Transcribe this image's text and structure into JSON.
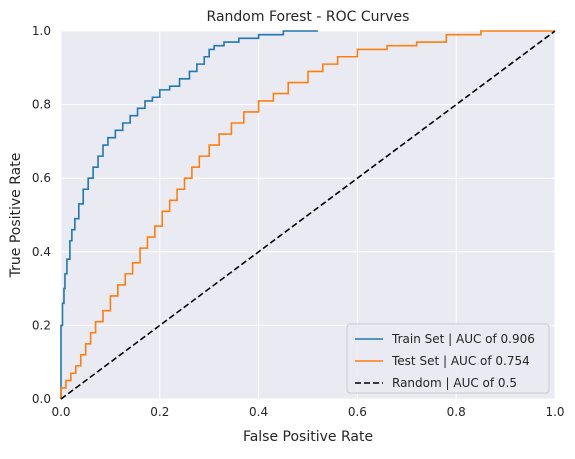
{
  "chart_data": {
    "type": "line",
    "title": "Random Forest - ROC Curves",
    "xlabel": "False Positive Rate",
    "ylabel": "True Positive Rate",
    "xlim": [
      0,
      1
    ],
    "ylim": [
      0,
      1
    ],
    "xticks": [
      "0.0",
      "0.2",
      "0.4",
      "0.6",
      "0.8",
      "1.0"
    ],
    "yticks": [
      "0.0",
      "0.2",
      "0.4",
      "0.6",
      "0.8",
      "1.0"
    ],
    "grid": true,
    "legend_position": "lower-right",
    "background": "#eaeaf2",
    "series": [
      {
        "name": "Train Set | AUC of 0.906",
        "color": "#1f77b4",
        "style": "solid",
        "points": [
          [
            0.0,
            0.0
          ],
          [
            0.0,
            0.14
          ],
          [
            0.003,
            0.2
          ],
          [
            0.006,
            0.26
          ],
          [
            0.008,
            0.3
          ],
          [
            0.012,
            0.34
          ],
          [
            0.018,
            0.38
          ],
          [
            0.022,
            0.43
          ],
          [
            0.028,
            0.46
          ],
          [
            0.036,
            0.49
          ],
          [
            0.045,
            0.53
          ],
          [
            0.055,
            0.57
          ],
          [
            0.065,
            0.6
          ],
          [
            0.075,
            0.63
          ],
          [
            0.085,
            0.66
          ],
          [
            0.095,
            0.69
          ],
          [
            0.11,
            0.71
          ],
          [
            0.125,
            0.73
          ],
          [
            0.14,
            0.75
          ],
          [
            0.155,
            0.77
          ],
          [
            0.17,
            0.79
          ],
          [
            0.185,
            0.81
          ],
          [
            0.2,
            0.82
          ],
          [
            0.22,
            0.84
          ],
          [
            0.24,
            0.85
          ],
          [
            0.26,
            0.87
          ],
          [
            0.275,
            0.89
          ],
          [
            0.29,
            0.91
          ],
          [
            0.3,
            0.93
          ],
          [
            0.31,
            0.95
          ],
          [
            0.33,
            0.96
          ],
          [
            0.36,
            0.97
          ],
          [
            0.4,
            0.98
          ],
          [
            0.45,
            0.99
          ],
          [
            0.52,
            1.0
          ]
        ]
      },
      {
        "name": "Test Set | AUC of 0.754",
        "color": "#ff7f0e",
        "style": "solid",
        "points": [
          [
            0.0,
            0.0
          ],
          [
            0.0,
            0.01
          ],
          [
            0.01,
            0.03
          ],
          [
            0.02,
            0.05
          ],
          [
            0.03,
            0.07
          ],
          [
            0.04,
            0.09
          ],
          [
            0.05,
            0.12
          ],
          [
            0.06,
            0.15
          ],
          [
            0.07,
            0.18
          ],
          [
            0.085,
            0.21
          ],
          [
            0.1,
            0.24
          ],
          [
            0.115,
            0.28
          ],
          [
            0.13,
            0.31
          ],
          [
            0.145,
            0.34
          ],
          [
            0.16,
            0.37
          ],
          [
            0.175,
            0.41
          ],
          [
            0.19,
            0.44
          ],
          [
            0.205,
            0.47
          ],
          [
            0.22,
            0.51
          ],
          [
            0.235,
            0.54
          ],
          [
            0.25,
            0.57
          ],
          [
            0.265,
            0.6
          ],
          [
            0.28,
            0.63
          ],
          [
            0.3,
            0.66
          ],
          [
            0.32,
            0.69
          ],
          [
            0.345,
            0.72
          ],
          [
            0.37,
            0.75
          ],
          [
            0.4,
            0.78
          ],
          [
            0.43,
            0.81
          ],
          [
            0.46,
            0.83
          ],
          [
            0.5,
            0.86
          ],
          [
            0.53,
            0.89
          ],
          [
            0.56,
            0.91
          ],
          [
            0.6,
            0.93
          ],
          [
            0.66,
            0.95
          ],
          [
            0.72,
            0.96
          ],
          [
            0.78,
            0.97
          ],
          [
            0.85,
            0.99
          ],
          [
            0.92,
            1.0
          ],
          [
            1.0,
            1.0
          ]
        ]
      },
      {
        "name": "Random | AUC of 0.5",
        "color": "#000000",
        "style": "dashed",
        "points": [
          [
            0.0,
            0.0
          ],
          [
            1.0,
            1.0
          ]
        ]
      }
    ]
  }
}
